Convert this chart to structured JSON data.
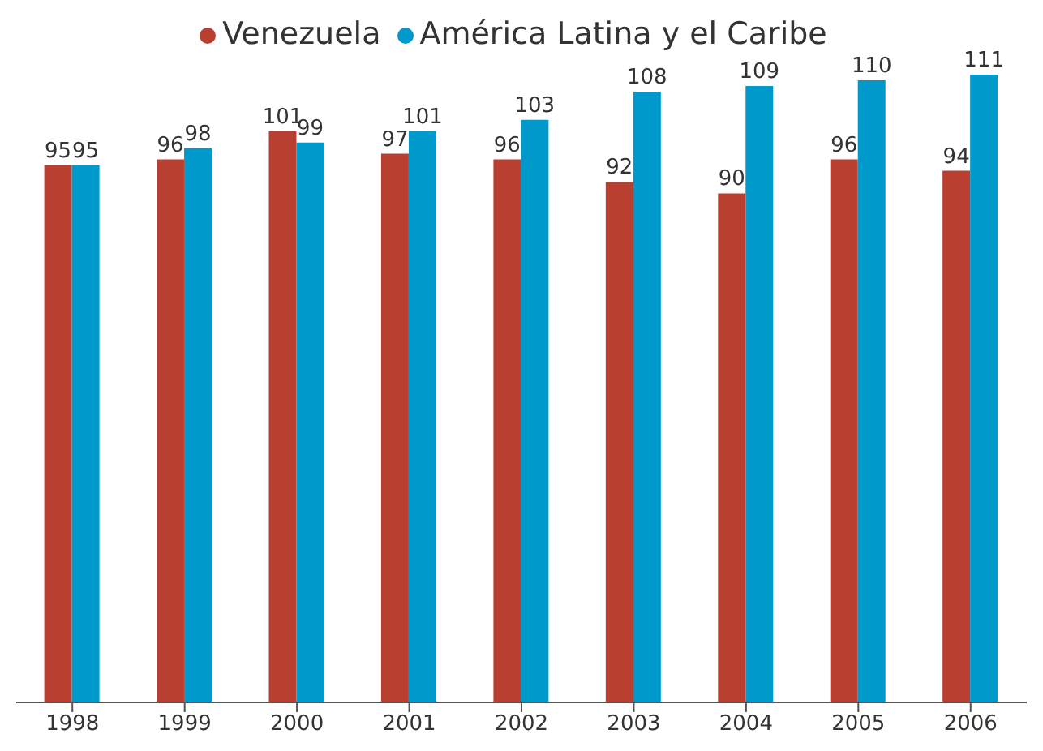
{
  "chart_data": {
    "type": "bar",
    "categories": [
      "1998",
      "1999",
      "2000",
      "2001",
      "2002",
      "2003",
      "2004",
      "2005",
      "2006"
    ],
    "series": [
      {
        "name": "Venezuela",
        "color": "#b94030",
        "values": [
          95,
          96,
          101,
          97,
          96,
          92,
          90,
          96,
          94
        ]
      },
      {
        "name": "América Latina y el Caribe",
        "color": "#0099cc",
        "values": [
          95,
          98,
          99,
          101,
          103,
          108,
          109,
          110,
          111
        ]
      }
    ],
    "data_labels": true,
    "legend": "top",
    "grid": false
  }
}
